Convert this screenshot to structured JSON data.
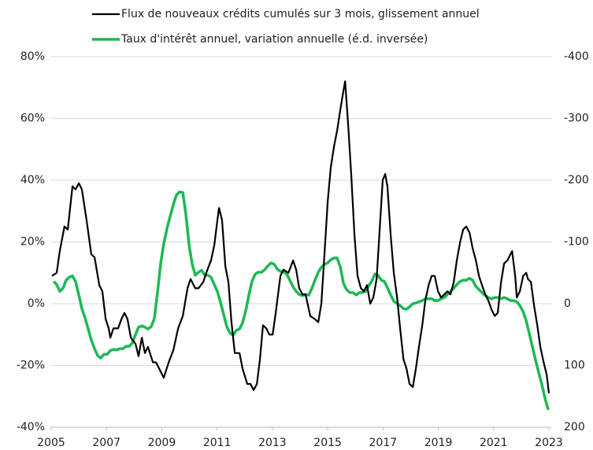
{
  "chart_data": {
    "type": "line",
    "xlim": [
      2005,
      2023
    ],
    "xticks": [
      2005,
      2007,
      2009,
      2011,
      2013,
      2015,
      2017,
      2019,
      2021,
      2023
    ],
    "ylim": [
      -40,
      80
    ],
    "yticks": [
      {
        "value": -40,
        "label": "-40%"
      },
      {
        "value": -20,
        "label": "-20%"
      },
      {
        "value": 0,
        "label": "0%"
      },
      {
        "value": 20,
        "label": "20%"
      },
      {
        "value": 40,
        "label": "40%"
      },
      {
        "value": 60,
        "label": "60%"
      },
      {
        "value": 80,
        "label": "80%"
      }
    ],
    "y2lim": [
      200,
      -400
    ],
    "y2ticks": [
      200,
      100,
      0,
      -100,
      -200,
      -300,
      -400
    ],
    "grid": true,
    "negative_tick_color": "#e8202a",
    "legend": "top",
    "series": [
      {
        "name": "Flux de nouveaux crédits cumulés sur 3 mois, glissement annuel",
        "color": "#000000",
        "axis": "y",
        "x": [
          2005.03,
          2005.2,
          2005.31,
          2005.48,
          2005.6,
          2005.77,
          2005.88,
          2006.0,
          2006.11,
          2006.28,
          2006.45,
          2006.57,
          2006.74,
          2006.85,
          2006.97,
          2007.08,
          2007.14,
          2007.25,
          2007.42,
          2007.54,
          2007.65,
          2007.76,
          2007.88,
          2008.05,
          2008.16,
          2008.28,
          2008.39,
          2008.5,
          2008.68,
          2008.79,
          2008.96,
          2009.07,
          2009.25,
          2009.42,
          2009.59,
          2009.76,
          2009.93,
          2010.04,
          2010.21,
          2010.33,
          2010.5,
          2010.61,
          2010.78,
          2010.9,
          2011.01,
          2011.07,
          2011.18,
          2011.3,
          2011.41,
          2011.52,
          2011.64,
          2011.81,
          2011.92,
          2012.09,
          2012.21,
          2012.32,
          2012.44,
          2012.55,
          2012.66,
          2012.78,
          2012.89,
          2013.01,
          2013.12,
          2013.29,
          2013.4,
          2013.58,
          2013.75,
          2013.86,
          2013.97,
          2014.09,
          2014.2,
          2014.37,
          2014.54,
          2014.66,
          2014.77,
          2014.89,
          2015.0,
          2015.11,
          2015.23,
          2015.34,
          2015.46,
          2015.57,
          2015.63,
          2015.74,
          2015.85,
          2015.97,
          2016.08,
          2016.2,
          2016.31,
          2016.42,
          2016.54,
          2016.65,
          2016.77,
          2016.88,
          2016.99,
          2017.08,
          2017.16,
          2017.28,
          2017.39,
          2017.51,
          2017.62,
          2017.74,
          2017.85,
          2017.96,
          2018.08,
          2018.19,
          2018.3,
          2018.42,
          2018.53,
          2018.65,
          2018.76,
          2018.87,
          2018.99,
          2019.1,
          2019.22,
          2019.33,
          2019.44,
          2019.56,
          2019.67,
          2019.79,
          2019.9,
          2020.01,
          2020.13,
          2020.24,
          2020.36,
          2020.47,
          2020.58,
          2020.7,
          2020.81,
          2020.93,
          2021.04,
          2021.15,
          2021.27,
          2021.38,
          2021.5,
          2021.61,
          2021.67,
          2021.78,
          2021.84,
          2021.95,
          2022.07,
          2022.18,
          2022.24,
          2022.35,
          2022.47,
          2022.58,
          2022.69,
          2022.81,
          2022.92,
          2023.0
        ],
        "values": [
          9,
          10,
          17,
          25,
          24,
          38,
          37,
          39,
          37,
          27,
          16,
          15,
          6,
          4,
          -5,
          -8,
          -11,
          -8,
          -8,
          -5,
          -3,
          -5,
          -11,
          -13,
          -17,
          -11,
          -16,
          -14,
          -19,
          -19,
          -22,
          -24,
          -19,
          -15,
          -8,
          -4,
          5,
          8,
          5,
          5,
          7,
          10,
          14,
          19,
          27,
          31,
          27,
          12,
          7,
          -6,
          -16,
          -16,
          -21,
          -26,
          -26,
          -28,
          -26,
          -18,
          -7,
          -8,
          -10,
          -10,
          -3,
          9,
          11,
          10,
          14,
          11,
          5,
          3,
          3,
          -4,
          -5,
          -6,
          0,
          17,
          33,
          44,
          51,
          56,
          63,
          69,
          72,
          58,
          42,
          22,
          9,
          5,
          4,
          6,
          0,
          2,
          8,
          24,
          40,
          42,
          38,
          22,
          10,
          2,
          -8,
          -18,
          -21,
          -26,
          -27,
          -21,
          -14,
          -7,
          1,
          6,
          9,
          9,
          4,
          2,
          3,
          4,
          3,
          7,
          14,
          20,
          24,
          25,
          23,
          18,
          14,
          9,
          6,
          3,
          1,
          -2,
          -4,
          -3,
          7,
          13,
          14,
          16,
          17,
          9,
          2,
          4,
          9,
          10,
          8,
          7,
          -1,
          -7,
          -14,
          -19,
          -23,
          -29
        ]
      },
      {
        "name": "Taux d'intérêt annuel, variation annuelle (é.d. inversée)",
        "color": "#1db954",
        "axis": "y2",
        "x": [
          2005.09,
          2005.2,
          2005.31,
          2005.43,
          2005.54,
          2005.66,
          2005.77,
          2005.88,
          2006.0,
          2006.11,
          2006.23,
          2006.34,
          2006.45,
          2006.57,
          2006.68,
          2006.79,
          2006.91,
          2007.02,
          2007.14,
          2007.25,
          2007.36,
          2007.48,
          2007.59,
          2007.71,
          2007.82,
          2007.93,
          2008.05,
          2008.16,
          2008.28,
          2008.39,
          2008.5,
          2008.62,
          2008.73,
          2008.85,
          2008.96,
          2009.07,
          2009.19,
          2009.3,
          2009.42,
          2009.53,
          2009.64,
          2009.76,
          2009.87,
          2009.99,
          2010.1,
          2010.21,
          2010.33,
          2010.44,
          2010.56,
          2010.67,
          2010.78,
          2010.9,
          2011.01,
          2011.13,
          2011.24,
          2011.35,
          2011.47,
          2011.58,
          2011.7,
          2011.81,
          2011.92,
          2012.04,
          2012.15,
          2012.26,
          2012.38,
          2012.49,
          2012.61,
          2012.72,
          2012.83,
          2012.95,
          2013.06,
          2013.18,
          2013.29,
          2013.4,
          2013.52,
          2013.63,
          2013.75,
          2013.86,
          2013.97,
          2014.09,
          2014.2,
          2014.32,
          2014.43,
          2014.54,
          2014.66,
          2014.77,
          2014.89,
          2015.0,
          2015.11,
          2015.23,
          2015.34,
          2015.46,
          2015.57,
          2015.68,
          2015.8,
          2015.91,
          2016.03,
          2016.14,
          2016.25,
          2016.37,
          2016.48,
          2016.6,
          2016.71,
          2016.82,
          2016.94,
          2017.05,
          2017.17,
          2017.28,
          2017.39,
          2017.51,
          2017.62,
          2017.74,
          2017.85,
          2017.96,
          2018.08,
          2018.19,
          2018.3,
          2018.42,
          2018.53,
          2018.65,
          2018.76,
          2018.87,
          2018.99,
          2019.1,
          2019.22,
          2019.33,
          2019.44,
          2019.56,
          2019.67,
          2019.79,
          2019.9,
          2020.01,
          2020.13,
          2020.24,
          2020.36,
          2020.47,
          2020.58,
          2020.7,
          2020.81,
          2020.93,
          2021.04,
          2021.15,
          2021.27,
          2021.38,
          2021.5,
          2021.61,
          2021.72,
          2021.84,
          2021.95,
          2022.07,
          2022.18,
          2022.3,
          2022.41,
          2022.52,
          2022.64,
          2022.75,
          2022.87,
          2022.98
        ],
        "values": [
          -36,
          -31,
          -20,
          -25,
          -38,
          -43,
          -45,
          -36,
          -14,
          8,
          24,
          41,
          59,
          73,
          84,
          88,
          82,
          82,
          76,
          74,
          75,
          73,
          73,
          69,
          69,
          64,
          50,
          38,
          36,
          38,
          41,
          37,
          24,
          -20,
          -65,
          -97,
          -122,
          -141,
          -161,
          -176,
          -181,
          -180,
          -145,
          -94,
          -64,
          -46,
          -51,
          -54,
          -46,
          -46,
          -43,
          -31,
          -20,
          -1,
          18,
          37,
          48,
          51,
          43,
          41,
          31,
          11,
          -14,
          -36,
          -48,
          -51,
          -51,
          -55,
          -61,
          -66,
          -64,
          -56,
          -52,
          -52,
          -48,
          -38,
          -27,
          -20,
          -15,
          -13,
          -15,
          -14,
          -25,
          -38,
          -51,
          -59,
          -64,
          -66,
          -71,
          -74,
          -74,
          -59,
          -33,
          -23,
          -18,
          -18,
          -14,
          -18,
          -18,
          -20,
          -29,
          -37,
          -48,
          -46,
          -38,
          -36,
          -25,
          -14,
          -4,
          0,
          3,
          8,
          9,
          5,
          0,
          -1,
          -3,
          -5,
          -8,
          -8,
          -8,
          -5,
          -5,
          -8,
          -10,
          -15,
          -20,
          -25,
          -31,
          -36,
          -38,
          -38,
          -41,
          -38,
          -28,
          -23,
          -18,
          -13,
          -10,
          -8,
          -10,
          -10,
          -8,
          -10,
          -8,
          -5,
          -5,
          -3,
          3,
          13,
          28,
          50,
          71,
          92,
          113,
          132,
          155,
          172
        ]
      }
    ]
  }
}
